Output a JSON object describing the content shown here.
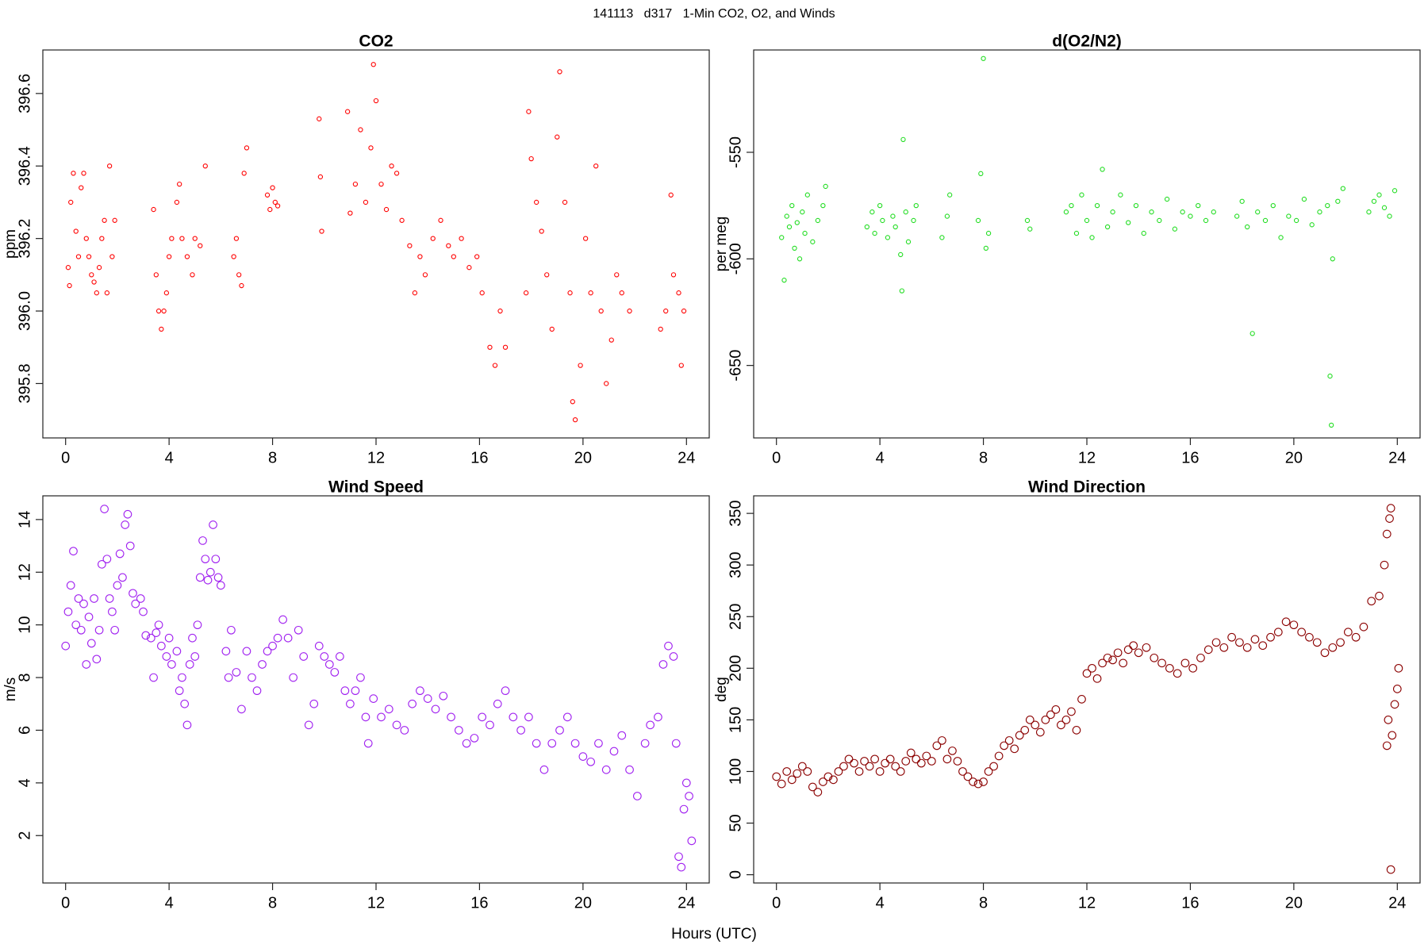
{
  "title": "141113   d317   1-Min CO2, O2, and Winds",
  "x_label": "Hours (UTC)",
  "chart_data": [
    {
      "type": "scatter",
      "title": "CO2",
      "y_label": "ppm",
      "color": "#ff0000",
      "xlim": [
        -0.88,
        24.88
      ],
      "xticks": [
        0,
        4,
        8,
        12,
        16,
        20,
        24
      ],
      "ylim": [
        395.65,
        396.72
      ],
      "yticks": [
        395.8,
        {
          "value": 396,
          "label": "396.0"
        },
        396.2,
        396.4,
        396.6
      ],
      "x": [
        0.1,
        0.15,
        0.2,
        0.3,
        0.4,
        0.5,
        0.6,
        0.7,
        0.8,
        0.9,
        1.0,
        1.1,
        1.2,
        1.3,
        1.4,
        1.5,
        1.6,
        1.7,
        1.8,
        1.9,
        3.4,
        3.5,
        3.6,
        3.7,
        3.8,
        3.9,
        4.0,
        4.1,
        4.3,
        4.4,
        4.5,
        4.7,
        4.9,
        5.0,
        5.2,
        5.4,
        6.5,
        6.6,
        6.7,
        6.8,
        6.9,
        7.0,
        7.8,
        7.9,
        8.0,
        8.1,
        8.2,
        9.8,
        9.85,
        9.9,
        10.9,
        11.0,
        11.2,
        11.4,
        11.6,
        11.8,
        11.9,
        12.0,
        12.2,
        12.4,
        12.6,
        12.8,
        13.0,
        13.3,
        13.5,
        13.7,
        13.9,
        14.2,
        14.5,
        14.8,
        15.0,
        15.3,
        15.6,
        15.9,
        16.1,
        16.4,
        16.6,
        16.8,
        17.0,
        17.8,
        17.9,
        18.0,
        18.2,
        18.4,
        18.6,
        18.8,
        19.0,
        19.1,
        19.3,
        19.5,
        19.6,
        19.7,
        19.9,
        20.1,
        20.3,
        20.5,
        20.7,
        20.9,
        21.1,
        21.3,
        21.5,
        21.8,
        23.0,
        23.2,
        23.4,
        23.5,
        23.7,
        23.8,
        23.9
      ],
      "values": [
        396.12,
        396.07,
        396.3,
        396.38,
        396.22,
        396.15,
        396.34,
        396.38,
        396.2,
        396.15,
        396.1,
        396.08,
        396.05,
        396.12,
        396.2,
        396.25,
        396.05,
        396.4,
        396.15,
        396.25,
        396.28,
        396.1,
        396.0,
        395.95,
        396.0,
        396.05,
        396.15,
        396.2,
        396.3,
        396.35,
        396.2,
        396.15,
        396.1,
        396.2,
        396.18,
        396.4,
        396.15,
        396.2,
        396.1,
        396.07,
        396.38,
        396.45,
        396.32,
        396.28,
        396.34,
        396.3,
        396.29,
        396.53,
        396.37,
        396.22,
        396.55,
        396.27,
        396.35,
        396.5,
        396.3,
        396.45,
        396.68,
        396.58,
        396.35,
        396.28,
        396.4,
        396.38,
        396.25,
        396.18,
        396.05,
        396.15,
        396.1,
        396.2,
        396.25,
        396.18,
        396.15,
        396.2,
        396.12,
        396.15,
        396.05,
        395.9,
        395.85,
        396.0,
        395.9,
        396.05,
        396.55,
        396.42,
        396.3,
        396.22,
        396.1,
        395.95,
        396.48,
        396.66,
        396.3,
        396.05,
        395.75,
        395.7,
        395.85,
        396.2,
        396.05,
        396.4,
        396.0,
        395.8,
        395.92,
        396.1,
        396.05,
        396.0,
        395.95,
        396.0,
        396.32,
        396.1,
        396.05,
        395.85,
        396.0
      ]
    },
    {
      "type": "scatter",
      "title": "d(O2/N2)",
      "y_label": "per meg",
      "color": "#22dd22",
      "xlim": [
        -0.88,
        24.88
      ],
      "xticks": [
        0,
        4,
        8,
        12,
        16,
        20,
        24
      ],
      "ylim": [
        -684,
        -502
      ],
      "yticks": [
        -650,
        -600,
        -550
      ],
      "x": [
        0.2,
        0.3,
        0.4,
        0.5,
        0.6,
        0.7,
        0.8,
        0.9,
        1.0,
        1.1,
        1.2,
        1.4,
        1.6,
        1.8,
        1.9,
        3.5,
        3.7,
        3.8,
        4.0,
        4.1,
        4.3,
        4.5,
        4.6,
        4.8,
        4.85,
        4.9,
        5.0,
        5.1,
        5.3,
        5.4,
        6.4,
        6.6,
        6.7,
        7.8,
        7.9,
        8.0,
        8.1,
        8.2,
        9.7,
        9.8,
        11.2,
        11.4,
        11.6,
        11.8,
        12.0,
        12.2,
        12.4,
        12.6,
        12.8,
        13.0,
        13.3,
        13.6,
        13.9,
        14.2,
        14.5,
        14.8,
        15.1,
        15.4,
        15.7,
        16.0,
        16.3,
        16.6,
        16.9,
        17.8,
        18.0,
        18.2,
        18.4,
        18.6,
        18.9,
        19.2,
        19.5,
        19.8,
        20.1,
        20.4,
        20.7,
        21.0,
        21.3,
        21.4,
        21.45,
        21.5,
        21.7,
        21.9,
        22.9,
        23.1,
        23.3,
        23.5,
        23.7,
        23.9
      ],
      "values": [
        -590,
        -610,
        -580,
        -585,
        -575,
        -595,
        -583,
        -600,
        -578,
        -588,
        -570,
        -592,
        -582,
        -575,
        -566,
        -585,
        -578,
        -588,
        -575,
        -582,
        -590,
        -580,
        -585,
        -598,
        -615,
        -544,
        -578,
        -592,
        -582,
        -575,
        -590,
        -580,
        -570,
        -582,
        -560,
        -506,
        -595,
        -588,
        -582,
        -586,
        -578,
        -575,
        -588,
        -570,
        -582,
        -590,
        -575,
        -558,
        -585,
        -578,
        -570,
        -583,
        -575,
        -588,
        -578,
        -582,
        -572,
        -586,
        -578,
        -580,
        -575,
        -582,
        -578,
        -580,
        -573,
        -585,
        -635,
        -578,
        -582,
        -575,
        -590,
        -580,
        -582,
        -572,
        -584,
        -578,
        -575,
        -655,
        -678,
        -600,
        -573,
        -567,
        -578,
        -573,
        -570,
        -576,
        -580,
        -568
      ]
    },
    {
      "type": "scatter",
      "title": "Wind Speed",
      "y_label": "m/s",
      "color": "#a020f0",
      "xlim": [
        -0.88,
        24.88
      ],
      "xticks": [
        0,
        4,
        8,
        12,
        16,
        20,
        24
      ],
      "ylim": [
        0.2,
        14.9
      ],
      "yticks": [
        2,
        4,
        6,
        8,
        10,
        12,
        14
      ],
      "x": [
        0.0,
        0.1,
        0.2,
        0.3,
        0.4,
        0.5,
        0.6,
        0.7,
        0.8,
        0.9,
        1.0,
        1.1,
        1.2,
        1.3,
        1.4,
        1.5,
        1.6,
        1.7,
        1.8,
        1.9,
        2.0,
        2.1,
        2.2,
        2.3,
        2.4,
        2.5,
        2.6,
        2.7,
        2.9,
        3.0,
        3.1,
        3.3,
        3.4,
        3.5,
        3.6,
        3.7,
        3.9,
        4.0,
        4.1,
        4.3,
        4.4,
        4.5,
        4.6,
        4.7,
        4.8,
        4.9,
        5.0,
        5.1,
        5.2,
        5.3,
        5.4,
        5.5,
        5.6,
        5.7,
        5.8,
        5.9,
        6.0,
        6.2,
        6.3,
        6.4,
        6.6,
        6.8,
        7.0,
        7.2,
        7.4,
        7.6,
        7.8,
        8.0,
        8.2,
        8.4,
        8.6,
        8.8,
        9.0,
        9.2,
        9.4,
        9.6,
        9.8,
        10.0,
        10.2,
        10.4,
        10.6,
        10.8,
        11.0,
        11.2,
        11.4,
        11.6,
        11.7,
        11.9,
        12.2,
        12.5,
        12.8,
        13.1,
        13.4,
        13.7,
        14.0,
        14.3,
        14.6,
        14.9,
        15.2,
        15.5,
        15.8,
        16.1,
        16.4,
        16.7,
        17.0,
        17.3,
        17.6,
        17.9,
        18.2,
        18.5,
        18.8,
        19.1,
        19.4,
        19.7,
        20.0,
        20.3,
        20.6,
        20.9,
        21.2,
        21.5,
        21.8,
        22.1,
        22.4,
        22.6,
        22.9,
        23.1,
        23.3,
        23.5,
        23.6,
        23.7,
        23.8,
        23.9,
        24.0,
        24.1,
        24.2
      ],
      "values": [
        9.2,
        10.5,
        11.5,
        12.8,
        10.0,
        11.0,
        9.8,
        10.8,
        8.5,
        10.3,
        9.3,
        11.0,
        8.7,
        9.8,
        12.3,
        14.4,
        12.5,
        11.0,
        10.5,
        9.8,
        11.5,
        12.7,
        11.8,
        13.8,
        14.2,
        13.0,
        11.2,
        10.8,
        11.0,
        10.5,
        9.6,
        9.5,
        8.0,
        9.7,
        10.0,
        9.2,
        8.8,
        9.5,
        8.5,
        9.0,
        7.5,
        8.0,
        7.0,
        6.2,
        8.5,
        9.5,
        8.8,
        10.0,
        11.8,
        13.2,
        12.5,
        11.7,
        12.0,
        13.8,
        12.5,
        11.8,
        11.5,
        9.0,
        8.0,
        9.8,
        8.2,
        6.8,
        9.0,
        8.0,
        7.5,
        8.5,
        9.0,
        9.2,
        9.5,
        10.2,
        9.5,
        8.0,
        9.8,
        8.8,
        6.2,
        7.0,
        9.2,
        8.8,
        8.5,
        8.2,
        8.8,
        7.5,
        7.0,
        7.5,
        8.0,
        6.5,
        5.5,
        7.2,
        6.5,
        6.8,
        6.2,
        6.0,
        7.0,
        7.5,
        7.2,
        6.8,
        7.3,
        6.5,
        6.0,
        5.5,
        5.7,
        6.5,
        6.2,
        7.0,
        7.5,
        6.5,
        6.0,
        6.5,
        5.5,
        4.5,
        5.5,
        6.0,
        6.5,
        5.5,
        5.0,
        4.8,
        5.5,
        4.5,
        5.2,
        5.8,
        4.5,
        3.5,
        5.5,
        6.2,
        6.5,
        8.5,
        9.2,
        8.8,
        5.5,
        1.2,
        0.8,
        3.0,
        4.0,
        3.5,
        1.8
      ]
    },
    {
      "type": "scatter",
      "title": "Wind Direction",
      "y_label": "deg",
      "color": "#8b0000",
      "xlim": [
        -0.88,
        24.88
      ],
      "xticks": [
        0,
        4,
        8,
        12,
        16,
        20,
        24
      ],
      "ylim": [
        -8,
        367
      ],
      "yticks": [
        0,
        50,
        100,
        150,
        200,
        250,
        300,
        350
      ],
      "x": [
        0.0,
        0.2,
        0.4,
        0.6,
        0.8,
        1.0,
        1.2,
        1.4,
        1.6,
        1.8,
        2.0,
        2.2,
        2.4,
        2.6,
        2.8,
        3.0,
        3.2,
        3.4,
        3.6,
        3.8,
        4.0,
        4.2,
        4.4,
        4.6,
        4.8,
        5.0,
        5.2,
        5.4,
        5.6,
        5.8,
        6.0,
        6.2,
        6.4,
        6.6,
        6.8,
        7.0,
        7.2,
        7.4,
        7.6,
        7.8,
        8.0,
        8.2,
        8.4,
        8.6,
        8.8,
        9.0,
        9.2,
        9.4,
        9.6,
        9.8,
        10.0,
        10.2,
        10.4,
        10.6,
        10.8,
        11.0,
        11.2,
        11.4,
        11.6,
        11.8,
        12.0,
        12.2,
        12.4,
        12.6,
        12.8,
        13.0,
        13.2,
        13.4,
        13.6,
        13.8,
        14.0,
        14.3,
        14.6,
        14.9,
        15.2,
        15.5,
        15.8,
        16.1,
        16.4,
        16.7,
        17.0,
        17.3,
        17.6,
        17.9,
        18.2,
        18.5,
        18.8,
        19.1,
        19.4,
        19.7,
        20.0,
        20.3,
        20.6,
        20.9,
        21.2,
        21.5,
        21.8,
        22.1,
        22.4,
        22.7,
        23.0,
        23.3,
        23.5,
        23.6,
        23.7,
        23.75,
        23.65,
        23.6,
        23.8,
        23.9,
        24.0,
        24.05,
        23.75
      ],
      "values": [
        95,
        88,
        100,
        92,
        98,
        105,
        100,
        85,
        80,
        90,
        95,
        92,
        100,
        105,
        112,
        108,
        100,
        110,
        105,
        112,
        100,
        108,
        112,
        105,
        100,
        110,
        118,
        112,
        108,
        115,
        110,
        125,
        130,
        112,
        120,
        110,
        100,
        95,
        90,
        88,
        90,
        100,
        105,
        115,
        125,
        130,
        122,
        135,
        140,
        150,
        145,
        138,
        150,
        155,
        160,
        145,
        150,
        158,
        140,
        170,
        195,
        200,
        190,
        205,
        210,
        208,
        215,
        205,
        218,
        222,
        215,
        220,
        210,
        205,
        200,
        195,
        205,
        200,
        210,
        218,
        225,
        220,
        230,
        225,
        220,
        228,
        222,
        230,
        235,
        245,
        242,
        235,
        230,
        225,
        215,
        220,
        225,
        235,
        230,
        240,
        265,
        270,
        300,
        330,
        345,
        355,
        150,
        125,
        135,
        165,
        180,
        200,
        5
      ]
    }
  ]
}
